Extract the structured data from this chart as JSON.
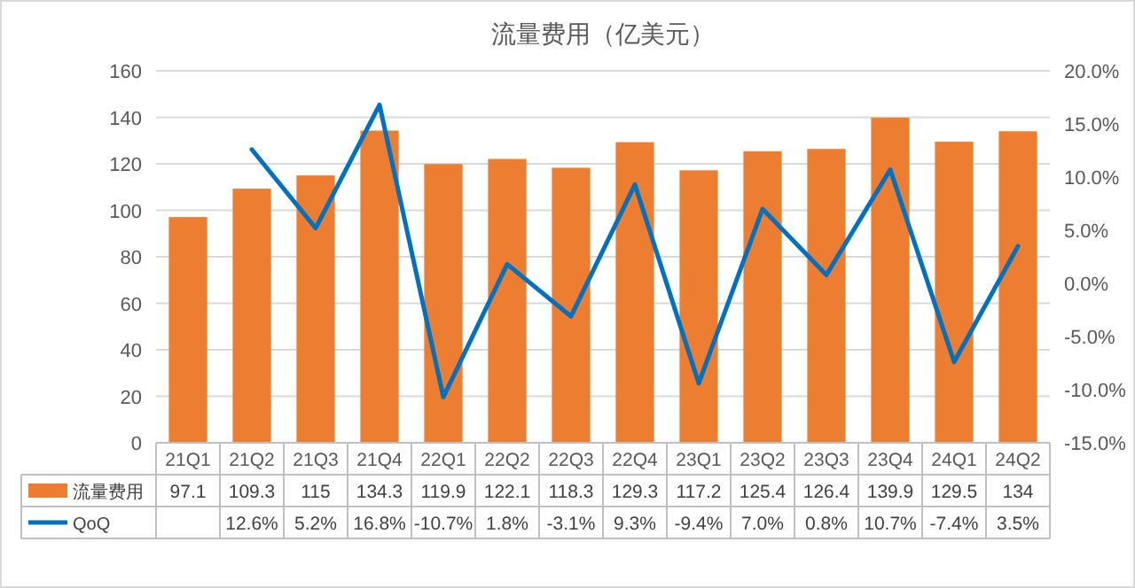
{
  "chart_data": {
    "type": "bar",
    "title": "流量费用（亿美元）",
    "categories": [
      "21Q1",
      "21Q2",
      "21Q3",
      "21Q4",
      "22Q1",
      "22Q2",
      "22Q3",
      "22Q4",
      "23Q1",
      "23Q2",
      "23Q3",
      "23Q4",
      "24Q1",
      "24Q2"
    ],
    "series": [
      {
        "name": "流量费用",
        "color": "#ed7d31",
        "values": [
          97.1,
          109.3,
          115,
          134.3,
          119.9,
          122.1,
          118.3,
          129.3,
          117.2,
          125.4,
          126.4,
          139.9,
          129.5,
          134
        ],
        "value_labels": [
          "97.1",
          "109.3",
          "115",
          "134.3",
          "119.9",
          "122.1",
          "118.3",
          "129.3",
          "117.2",
          "125.4",
          "126.4",
          "139.9",
          "129.5",
          "134"
        ]
      },
      {
        "name": "QoQ",
        "type": "line",
        "axis": "y2",
        "color": "#0070c0",
        "line_style": "solid",
        "values": [
          null,
          12.6,
          5.2,
          16.8,
          -10.7,
          1.8,
          -3.1,
          9.3,
          -9.4,
          7.0,
          0.8,
          10.7,
          -7.4,
          3.5
        ],
        "value_labels": [
          null,
          "12.6%",
          "5.2%",
          "16.8%",
          "-10.7%",
          "1.8%",
          "-3.1%",
          "9.3%",
          "-9.4%",
          "7.0%",
          "0.8%",
          "10.7%",
          "-7.4%",
          "3.5%"
        ]
      }
    ],
    "ylim": [
      0,
      160
    ],
    "yticks": [
      0,
      20,
      40,
      60,
      80,
      100,
      120,
      140,
      160
    ],
    "y2lim": [
      -15,
      20
    ],
    "y2ticks": [
      {
        "value": -15,
        "label": "-15.0%"
      },
      {
        "value": -10,
        "label": "-10.0%"
      },
      {
        "value": -5,
        "label": "-5.0%"
      },
      {
        "value": 0,
        "label": "0.0%"
      },
      {
        "value": 5,
        "label": "5.0%"
      },
      {
        "value": 10,
        "label": "10.0%"
      },
      {
        "value": 15,
        "label": "15.0%"
      },
      {
        "value": 20,
        "label": "20.0%"
      }
    ],
    "grid": "y",
    "legend": "bottom"
  }
}
